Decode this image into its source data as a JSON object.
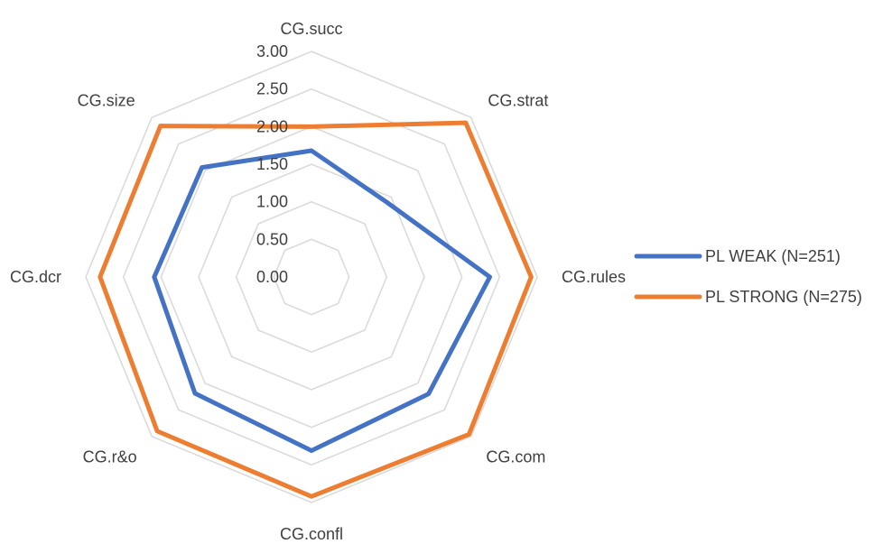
{
  "chart_data": {
    "type": "radar",
    "title": "",
    "categories": [
      "CG.succ",
      "CG.strat",
      "CG.rules",
      "CG.com",
      "CG.confl",
      "CG.r&o",
      "CG.dcr",
      "CG.size"
    ],
    "rlim": [
      0,
      3
    ],
    "ticks": [
      "0.00",
      "0.50",
      "1.00",
      "1.50",
      "2.00",
      "2.50",
      "3.00"
    ],
    "tick_values": [
      0,
      0.5,
      1,
      1.5,
      2,
      2.5,
      3
    ],
    "grid": true,
    "legend_position": "right",
    "series": [
      {
        "name": "PL WEAK (N=251)",
        "color": "#4472C4",
        "values": [
          1.68,
          1.41,
          2.37,
          2.2,
          2.31,
          2.19,
          2.09,
          2.06
        ]
      },
      {
        "name": "PL STRONG (N=275)",
        "color": "#ED7D31",
        "values": [
          2.0,
          2.9,
          2.92,
          2.96,
          2.92,
          2.9,
          2.81,
          2.84
        ]
      }
    ]
  }
}
